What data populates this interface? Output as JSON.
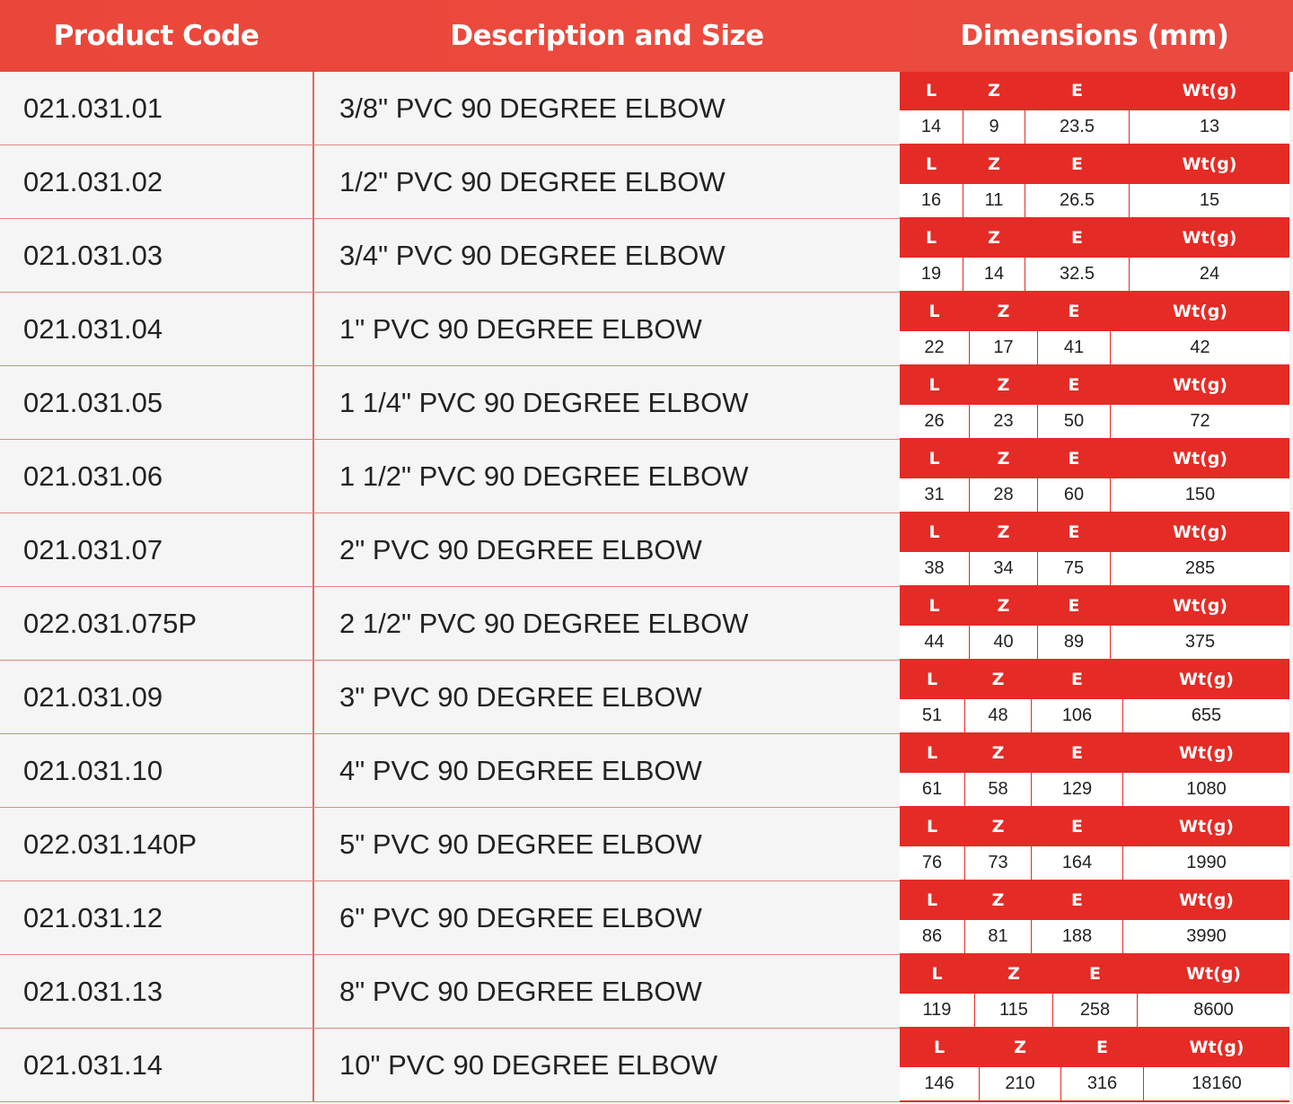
{
  "header": {
    "product_code": "Product Code",
    "description": "Description and Size",
    "dimensions": "Dimensions (mm)"
  },
  "dim_labels": {
    "l": "L",
    "z": "Z",
    "e": "E",
    "wt": "Wt(g)"
  },
  "colors": {
    "header_bg": "#ea4a3e",
    "dim_header_bg": "#e52b25",
    "row_bg": "#f5f5f5",
    "divider": "#e06a60"
  },
  "rows": [
    {
      "code": "021.031.01",
      "desc": "3/8\" PVC 90 DEGREE ELBOW",
      "l": "14",
      "z": "9",
      "e": "23.5",
      "wt": "13"
    },
    {
      "code": "021.031.02",
      "desc": "1/2\" PVC 90 DEGREE ELBOW",
      "l": "16",
      "z": "11",
      "e": "26.5",
      "wt": "15"
    },
    {
      "code": "021.031.03",
      "desc": "3/4\" PVC 90 DEGREE ELBOW",
      "l": "19",
      "z": "14",
      "e": "32.5",
      "wt": "24"
    },
    {
      "code": "021.031.04",
      "desc": "1\" PVC 90 DEGREE ELBOW",
      "l": "22",
      "z": "17",
      "e": "41",
      "wt": "42"
    },
    {
      "code": "021.031.05",
      "desc": "1 1/4\" PVC 90 DEGREE ELBOW",
      "l": "26",
      "z": "23",
      "e": "50",
      "wt": "72"
    },
    {
      "code": "021.031.06",
      "desc": "1 1/2\" PVC 90 DEGREE ELBOW",
      "l": "31",
      "z": "28",
      "e": "60",
      "wt": "150"
    },
    {
      "code": "021.031.07",
      "desc": "2\" PVC 90 DEGREE ELBOW",
      "l": "38",
      "z": "34",
      "e": "75",
      "wt": "285"
    },
    {
      "code": "022.031.075P",
      "desc": "2 1/2\" PVC 90 DEGREE ELBOW",
      "l": "44",
      "z": "40",
      "e": "89",
      "wt": "375"
    },
    {
      "code": "021.031.09",
      "desc": "3\" PVC 90 DEGREE ELBOW",
      "l": "51",
      "z": "48",
      "e": "106",
      "wt": "655"
    },
    {
      "code": "021.031.10",
      "desc": "4\" PVC 90 DEGREE ELBOW",
      "l": "61",
      "z": "58",
      "e": "129",
      "wt": "1080"
    },
    {
      "code": "022.031.140P",
      "desc": "5\" PVC 90 DEGREE ELBOW",
      "l": "76",
      "z": "73",
      "e": "164",
      "wt": "1990"
    },
    {
      "code": "021.031.12",
      "desc": "6\" PVC 90 DEGREE ELBOW",
      "l": "86",
      "z": "81",
      "e": "188",
      "wt": "3990"
    },
    {
      "code": "021.031.13",
      "desc": "8\" PVC 90 DEGREE ELBOW",
      "l": "119",
      "z": "115",
      "e": "258",
      "wt": "8600"
    },
    {
      "code": "021.031.14",
      "desc": "10\" PVC 90 DEGREE ELBOW",
      "l": "146",
      "z": "210",
      "e": "316",
      "wt": "18160"
    }
  ]
}
